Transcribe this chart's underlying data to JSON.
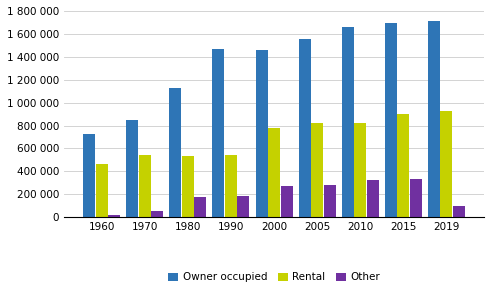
{
  "years": [
    "1960",
    "1970",
    "1980",
    "1990",
    "2000",
    "2005",
    "2010",
    "2015",
    "2019"
  ],
  "owner_occupied": [
    730000,
    850000,
    1130000,
    1470000,
    1455000,
    1555000,
    1660000,
    1695000,
    1710000
  ],
  "rental": [
    465000,
    540000,
    535000,
    545000,
    775000,
    820000,
    820000,
    900000,
    930000
  ],
  "other": [
    20000,
    55000,
    175000,
    185000,
    275000,
    285000,
    325000,
    335000,
    100000
  ],
  "bar_colors": [
    "#2e75b6",
    "#c5d100",
    "#7030a0"
  ],
  "legend_labels": [
    "Owner occupied",
    "Rental",
    "Other"
  ],
  "ylim": [
    0,
    1800000
  ],
  "yticks": [
    0,
    200000,
    400000,
    600000,
    800000,
    1000000,
    1200000,
    1400000,
    1600000,
    1800000
  ],
  "background_color": "#ffffff",
  "grid_color": "#cccccc"
}
